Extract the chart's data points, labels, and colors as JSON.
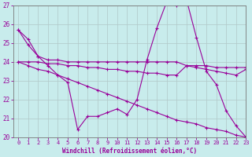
{
  "xlabel": "Windchill (Refroidissement éolien,°C)",
  "ylabel": "",
  "xlim": [
    -0.5,
    23
  ],
  "ylim": [
    20,
    27
  ],
  "yticks": [
    20,
    21,
    22,
    23,
    24,
    25,
    26,
    27
  ],
  "xticks": [
    0,
    1,
    2,
    3,
    4,
    5,
    6,
    7,
    8,
    9,
    10,
    11,
    12,
    13,
    14,
    15,
    16,
    17,
    18,
    19,
    20,
    21,
    22,
    23
  ],
  "bg_color": "#c8ecec",
  "line_color": "#990099",
  "grid_color": "#b0c8c8",
  "lines": [
    {
      "x": [
        0,
        1,
        2,
        3,
        4,
        5,
        6,
        7,
        8,
        9,
        10,
        11,
        12,
        13,
        14,
        15,
        16,
        17,
        18,
        19,
        20,
        21,
        22,
        23
      ],
      "y": [
        25.7,
        25.2,
        24.3,
        23.8,
        23.3,
        22.9,
        20.4,
        21.1,
        21.1,
        21.3,
        21.5,
        21.2,
        22.0,
        24.1,
        25.8,
        27.2,
        27.0,
        27.3,
        25.3,
        23.5,
        22.8,
        21.4,
        20.6,
        20.0
      ]
    },
    {
      "x": [
        0,
        1,
        2,
        3,
        4,
        5,
        6,
        7,
        8,
        9,
        10,
        11,
        12,
        13,
        14,
        15,
        16,
        17,
        18,
        19,
        20,
        21,
        22,
        23
      ],
      "y": [
        25.7,
        24.9,
        24.3,
        24.1,
        24.1,
        24.0,
        24.0,
        24.0,
        24.0,
        24.0,
        24.0,
        24.0,
        24.0,
        24.0,
        24.0,
        24.0,
        24.0,
        23.8,
        23.8,
        23.8,
        23.7,
        23.7,
        23.7,
        23.7
      ]
    },
    {
      "x": [
        0,
        1,
        2,
        3,
        4,
        5,
        6,
        7,
        8,
        9,
        10,
        11,
        12,
        13,
        14,
        15,
        16,
        17,
        18,
        19,
        20,
        21,
        22,
        23
      ],
      "y": [
        24.0,
        24.0,
        24.0,
        23.9,
        23.9,
        23.8,
        23.8,
        23.7,
        23.7,
        23.6,
        23.6,
        23.5,
        23.5,
        23.4,
        23.4,
        23.3,
        23.3,
        23.8,
        23.7,
        23.6,
        23.5,
        23.4,
        23.3,
        23.6
      ]
    },
    {
      "x": [
        0,
        1,
        2,
        3,
        4,
        5,
        6,
        7,
        8,
        9,
        10,
        11,
        12,
        13,
        14,
        15,
        16,
        17,
        18,
        19,
        20,
        21,
        22,
        23
      ],
      "y": [
        24.0,
        23.8,
        23.6,
        23.5,
        23.3,
        23.1,
        22.9,
        22.7,
        22.5,
        22.3,
        22.1,
        21.9,
        21.7,
        21.5,
        21.3,
        21.1,
        20.9,
        20.8,
        20.7,
        20.5,
        20.4,
        20.3,
        20.1,
        20.0
      ]
    }
  ]
}
